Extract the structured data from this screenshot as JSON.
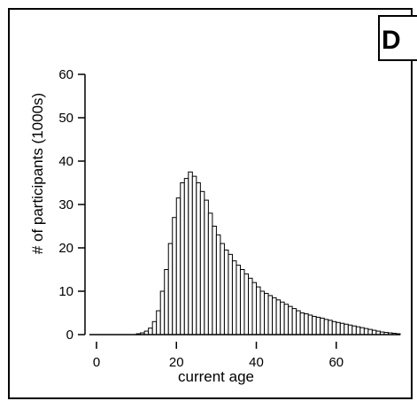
{
  "panel_label": "D",
  "chart_data": {
    "type": "bar",
    "xlabel": "current age",
    "ylabel": "# of participants (1000s)",
    "xlim": [
      0,
      76
    ],
    "ylim": [
      0,
      60
    ],
    "xticks": [
      0,
      20,
      40,
      60
    ],
    "yticks": [
      0,
      10,
      20,
      30,
      40,
      50,
      60
    ],
    "bar_fill": "#ffffff",
    "bar_stroke": "#000000",
    "bin_width": 1,
    "x": [
      10,
      11,
      12,
      13,
      14,
      15,
      16,
      17,
      18,
      19,
      20,
      21,
      22,
      23,
      24,
      25,
      26,
      27,
      28,
      29,
      30,
      31,
      32,
      33,
      34,
      35,
      36,
      37,
      38,
      39,
      40,
      41,
      42,
      43,
      44,
      45,
      46,
      47,
      48,
      49,
      50,
      51,
      52,
      53,
      54,
      55,
      56,
      57,
      58,
      59,
      60,
      61,
      62,
      63,
      64,
      65,
      66,
      67,
      68,
      69,
      70,
      71,
      72,
      73,
      74,
      75
    ],
    "values": [
      0.2,
      0.4,
      0.8,
      1.5,
      3.0,
      5.5,
      10.0,
      15.0,
      21.0,
      27.0,
      31.5,
      35.0,
      36.0,
      37.5,
      36.5,
      35.0,
      33.0,
      31.0,
      28.0,
      25.0,
      23.0,
      21.0,
      19.5,
      18.5,
      17.0,
      16.0,
      15.0,
      14.0,
      13.0,
      12.0,
      11.0,
      10.0,
      9.5,
      9.0,
      8.5,
      8.0,
      7.5,
      7.0,
      6.5,
      6.0,
      5.5,
      5.0,
      4.8,
      4.5,
      4.2,
      4.0,
      3.8,
      3.5,
      3.3,
      3.0,
      2.8,
      2.6,
      2.4,
      2.2,
      2.0,
      1.8,
      1.6,
      1.4,
      1.2,
      1.0,
      0.8,
      0.6,
      0.5,
      0.4,
      0.3,
      0.2
    ]
  }
}
